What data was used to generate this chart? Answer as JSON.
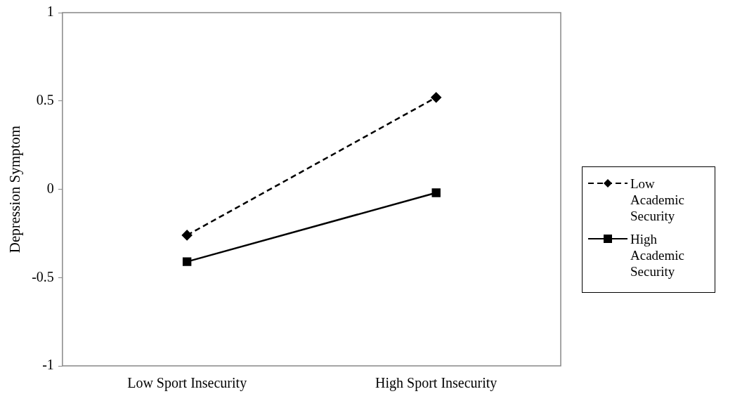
{
  "chart_data": {
    "type": "line",
    "ylabel": "Depression Symptom",
    "categories": [
      "Low Sport Insecurity",
      "High Sport Insecurity"
    ],
    "ylim": [
      -1,
      1
    ],
    "yticks": [
      -1,
      -0.5,
      0,
      0.5,
      1
    ],
    "grid": false,
    "legend": "right",
    "series": [
      {
        "name": "Low Academic Security",
        "color": "#000000",
        "values": [
          -0.26,
          0.52
        ],
        "marker": "diamond",
        "line_style": "dashed"
      },
      {
        "name": "High Academic Security",
        "color": "#000000",
        "values": [
          -0.41,
          -0.02
        ],
        "marker": "square",
        "line_style": "solid"
      }
    ]
  }
}
